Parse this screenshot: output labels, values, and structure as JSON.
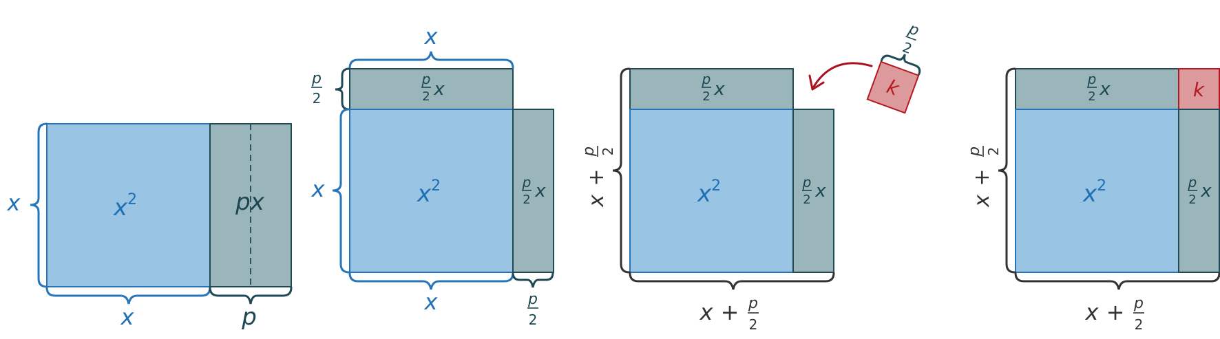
{
  "colors": {
    "square_fill": "#99c4e3",
    "square_stroke": "#2775b8",
    "rect_fill": "#9ab6ba",
    "rect_stroke": "#1f4a55",
    "k_fill": "#dd9a9d",
    "k_stroke": "#b31a22",
    "blue_text": "#1f6fb5",
    "teal_text": "#1d4653",
    "dark_text": "#333333",
    "arrow": "#a8121d"
  },
  "symbols": {
    "x": "x",
    "x_squared_base": "x",
    "x_squared_exp": "2",
    "p": "p",
    "px": "px",
    "two": "2",
    "plus": "+",
    "k": "k"
  }
}
